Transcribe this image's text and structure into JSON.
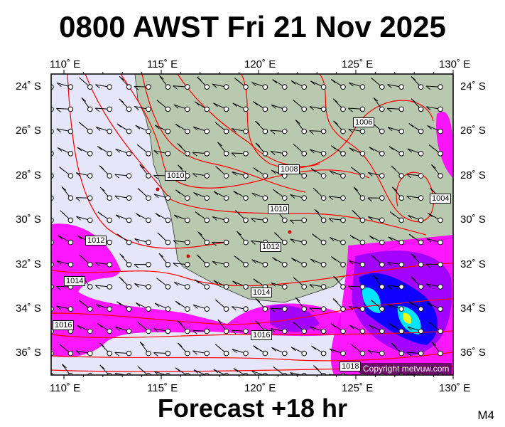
{
  "header": {
    "title": "0800 AWST Fri 21 Nov 2025"
  },
  "footer": {
    "forecast": "Forecast +18 hr",
    "model": "M4",
    "copyright": "Copyright metvuw.com"
  },
  "map": {
    "lon_labels": [
      "110˚ E",
      "115˚ E",
      "120˚ E",
      "125˚ E",
      "130˚ E"
    ],
    "lat_labels": [
      "24˚ S",
      "26˚ S",
      "28˚ S",
      "30˚ S",
      "32˚ S",
      "34˚ S",
      "36˚ S"
    ],
    "isobar_labels": [
      "1006",
      "1008",
      "1010",
      "1010",
      "1012",
      "1012",
      "1014",
      "1014",
      "1016",
      "1016",
      "1018",
      "1004"
    ],
    "colors": {
      "sea": "#e6e6fa",
      "land": "#b8c9b0",
      "isobar": "#ff0000",
      "rain_light": "#ff00ff",
      "rain_mod": "#9900ff",
      "rain_heavy": "#0000ff",
      "rain_vheavy": "#00ffff",
      "rain_extreme": "#ffff00"
    }
  }
}
